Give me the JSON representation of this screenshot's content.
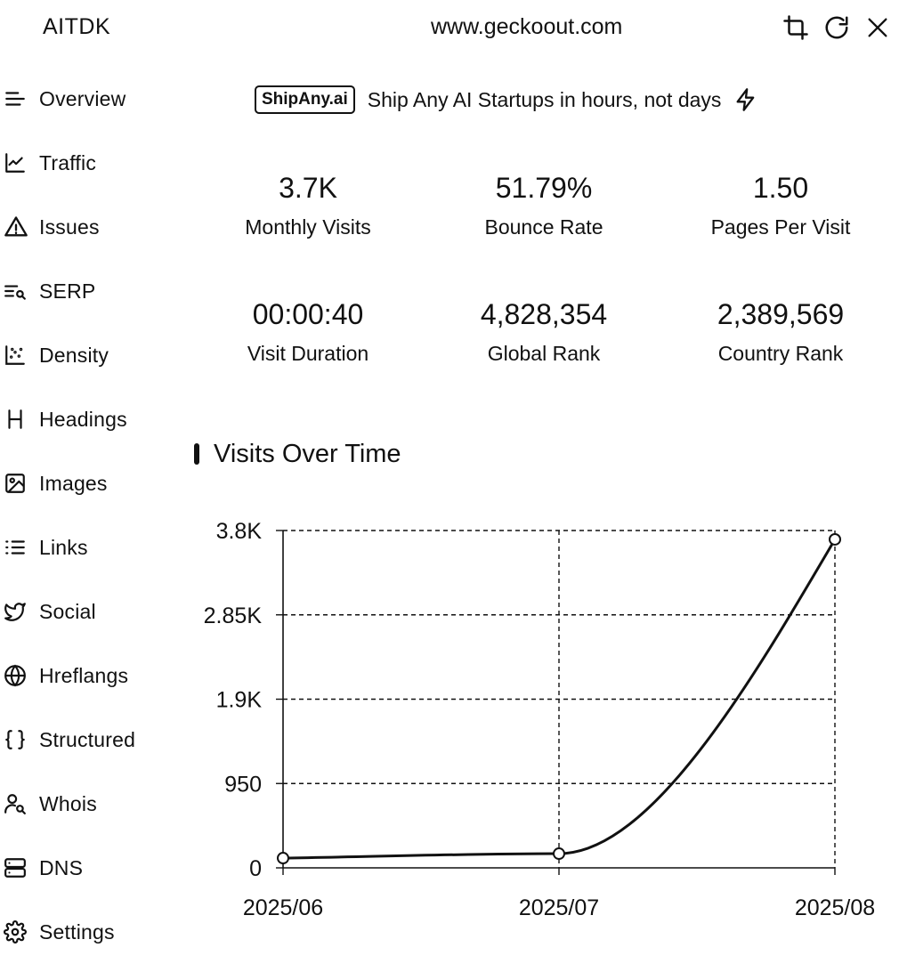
{
  "app": {
    "brand": "AITDK",
    "url": "www.geckoout.com"
  },
  "toolbar": {
    "crop_icon": "crop-icon",
    "refresh_icon": "refresh-icon",
    "close_icon": "close-icon"
  },
  "sidebar": {
    "items": [
      {
        "label": "Overview",
        "icon": "menu-lines-icon"
      },
      {
        "label": "Traffic",
        "icon": "line-chart-icon"
      },
      {
        "label": "Issues",
        "icon": "warning-icon"
      },
      {
        "label": "SERP",
        "icon": "list-search-icon"
      },
      {
        "label": "Density",
        "icon": "scatter-icon"
      },
      {
        "label": "Headings",
        "icon": "heading-icon"
      },
      {
        "label": "Images",
        "icon": "image-icon"
      },
      {
        "label": "Links",
        "icon": "list-icon"
      },
      {
        "label": "Social",
        "icon": "twitter-bird-icon"
      },
      {
        "label": "Hreflangs",
        "icon": "globe-icon"
      },
      {
        "label": "Structured",
        "icon": "braces-icon"
      },
      {
        "label": "Whois",
        "icon": "user-search-icon"
      },
      {
        "label": "DNS",
        "icon": "server-icon"
      },
      {
        "label": "Settings",
        "icon": "gear-icon"
      }
    ]
  },
  "promo": {
    "badge": "ShipAny.ai",
    "text": "Ship Any AI Startups in hours, not days",
    "icon": "lightning-icon"
  },
  "stats": [
    {
      "value": "3.7K",
      "label": "Monthly Visits"
    },
    {
      "value": "51.79%",
      "label": "Bounce Rate"
    },
    {
      "value": "1.50",
      "label": "Pages Per Visit"
    },
    {
      "value": "00:00:40",
      "label": "Visit Duration"
    },
    {
      "value": "4,828,354",
      "label": "Global Rank"
    },
    {
      "value": "2,389,569",
      "label": "Country Rank"
    }
  ],
  "section": {
    "title": "Visits Over Time"
  },
  "chart_data": {
    "type": "line",
    "title": "Visits Over Time",
    "categories": [
      "2025/06",
      "2025/07",
      "2025/08"
    ],
    "series": [
      {
        "values": [
          110,
          160,
          3700
        ]
      }
    ],
    "ylim": [
      0,
      3800
    ],
    "yticks": [
      0,
      950,
      1900,
      2850,
      3800
    ],
    "ytick_labels": [
      "0",
      "950",
      "1.9K",
      "2.85K",
      "3.8K"
    ],
    "grid": true,
    "legend": "none"
  }
}
